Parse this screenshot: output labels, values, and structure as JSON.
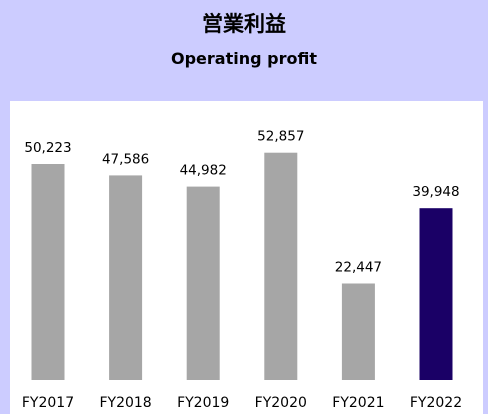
{
  "chart_data": {
    "type": "bar",
    "title": "営業利益",
    "subtitle": "Operating profit",
    "categories": [
      "FY2017",
      "FY2018",
      "FY2019",
      "FY2020",
      "FY2021",
      "FY2022"
    ],
    "values": [
      50223,
      47586,
      44982,
      52857,
      22447,
      39948
    ],
    "value_labels": [
      "50,223",
      "47,586",
      "44,982",
      "52,857",
      "22,447",
      "39,948"
    ],
    "colors": [
      "#a6a6a6",
      "#a6a6a6",
      "#a6a6a6",
      "#a6a6a6",
      "#a6a6a6",
      "#1a0066"
    ],
    "ylim": [
      0,
      57000
    ],
    "grid": false,
    "legend": "none",
    "xlabel": "",
    "ylabel": ""
  },
  "style": {
    "background": "#ccccff",
    "plot_background": "#ffffff",
    "bar_default": "#a6a6a6",
    "bar_highlight": "#1a0066"
  }
}
